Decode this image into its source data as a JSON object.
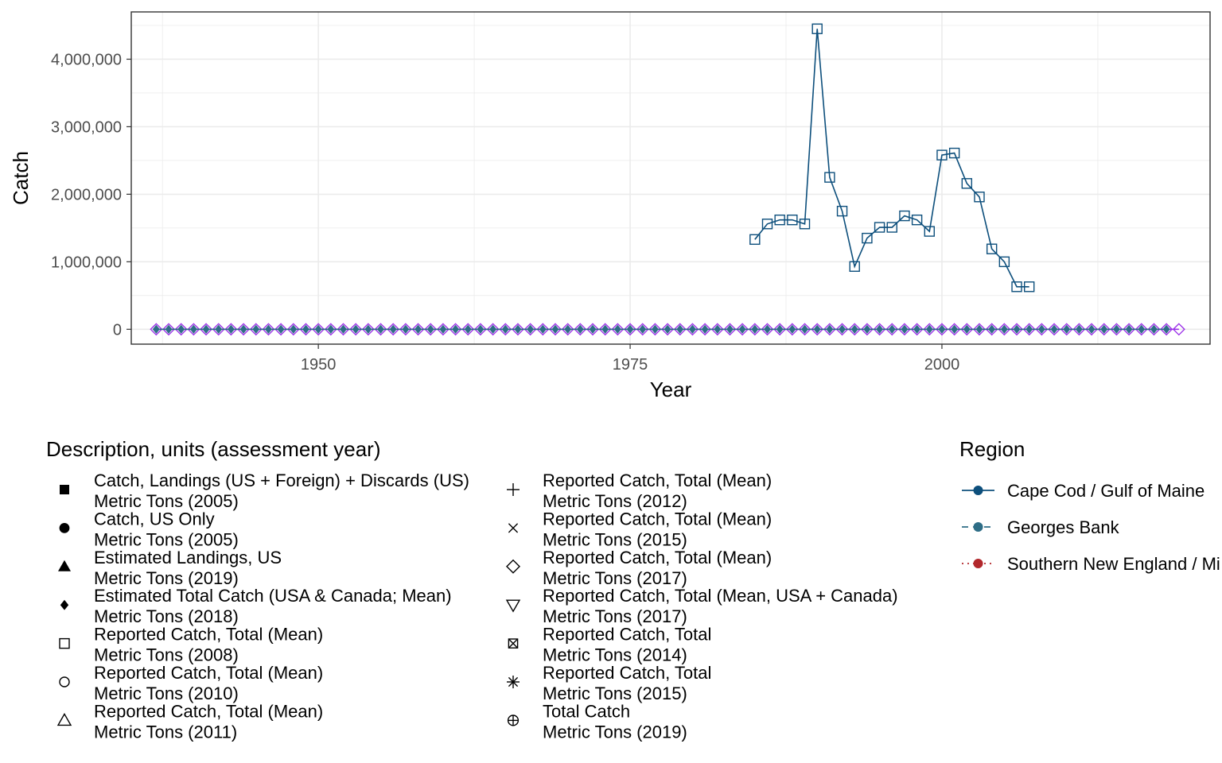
{
  "chart_data": {
    "type": "line",
    "xlabel": "Year",
    "ylabel": "Catch",
    "xlim": [
      1935,
      2021.5
    ],
    "ylim": [
      -220000,
      4700000
    ],
    "x_ticks": [
      1950,
      1975,
      2000
    ],
    "x_tick_labels": [
      "1950",
      "1975",
      "2000"
    ],
    "y_ticks": [
      0,
      1000000,
      2000000,
      3000000,
      4000000
    ],
    "y_tick_labels": [
      "0",
      "1,000,000",
      "2,000,000",
      "3,000,000",
      "4,000,000"
    ],
    "grid": true,
    "legend_shape": {
      "title": "Description, units (assessment year)",
      "entries": [
        {
          "shape": "filled-square",
          "line1": "Catch, Landings (US + Foreign) + Discards (US)",
          "line2": "Metric Tons (2005)"
        },
        {
          "shape": "filled-circle",
          "line1": "Catch, US Only",
          "line2": "Metric Tons (2005)"
        },
        {
          "shape": "filled-triangle",
          "line1": "Estimated Landings, US",
          "line2": "Metric Tons (2019)"
        },
        {
          "shape": "filled-diamond",
          "line1": "Estimated Total Catch (USA & Canada; Mean)",
          "line2": "Metric Tons (2018)"
        },
        {
          "shape": "open-square",
          "line1": "Reported Catch, Total (Mean)",
          "line2": "Metric Tons (2008)"
        },
        {
          "shape": "open-circle",
          "line1": "Reported Catch, Total (Mean)",
          "line2": "Metric Tons (2010)"
        },
        {
          "shape": "open-triangle",
          "line1": "Reported Catch, Total (Mean)",
          "line2": "Metric Tons (2011)"
        },
        {
          "shape": "plus",
          "line1": "Reported Catch, Total (Mean)",
          "line2": "Metric Tons (2012)"
        },
        {
          "shape": "cross",
          "line1": "Reported Catch, Total (Mean)",
          "line2": "Metric Tons (2015)"
        },
        {
          "shape": "open-diamond",
          "line1": "Reported Catch, Total (Mean)",
          "line2": "Metric Tons (2017)"
        },
        {
          "shape": "open-triangle-down",
          "line1": "Reported Catch, Total (Mean, USA + Canada)",
          "line2": "Metric Tons (2017)"
        },
        {
          "shape": "square-cross",
          "line1": "Reported Catch, Total",
          "line2": "Metric Tons (2014)"
        },
        {
          "shape": "asterisk",
          "line1": "Reported Catch, Total",
          "line2": "Metric Tons (2015)"
        },
        {
          "shape": "circle-plus",
          "line1": "Total Catch",
          "line2": "Metric Tons (2019)"
        }
      ]
    },
    "legend_region": {
      "title": "Region",
      "entries": [
        {
          "label": "Cape Cod / Gulf of Maine",
          "color": "#0d4f7c",
          "linetype": "solid"
        },
        {
          "label": "Georges Bank",
          "color": "#2e6d86",
          "linetype": "dashed"
        },
        {
          "label": "Southern New England / Mi",
          "color": "#b2282c",
          "linetype": "dotted"
        }
      ]
    },
    "series": [
      {
        "region": "Cape Cod / Gulf of Maine",
        "color": "#0d4f7c",
        "shape": "open-square",
        "x": [
          1985,
          1986,
          1987,
          1988,
          1989,
          1990,
          1991,
          1992,
          1993,
          1994,
          1995,
          1996,
          1997,
          1998,
          1999,
          2000,
          2001,
          2002,
          2003,
          2004,
          2005,
          2006,
          2007
        ],
        "y": [
          1330000,
          1560000,
          1620000,
          1620000,
          1560000,
          4450000,
          2250000,
          1750000,
          930000,
          1350000,
          1510000,
          1510000,
          1680000,
          1620000,
          1450000,
          2580000,
          2610000,
          2160000,
          1960000,
          1190000,
          1000000,
          630000,
          630000
        ]
      },
      {
        "region": "Southern New England / Mi",
        "color": "#9b30e8",
        "shape": "open-diamond",
        "x_start": 1937,
        "x_end": 2019,
        "y_value": 0
      },
      {
        "region": "Georges Bank",
        "color": "#2e6d86",
        "shape": "filled-diamond",
        "x_start": 1937,
        "x_end": 2018,
        "y_value": 0
      }
    ]
  }
}
